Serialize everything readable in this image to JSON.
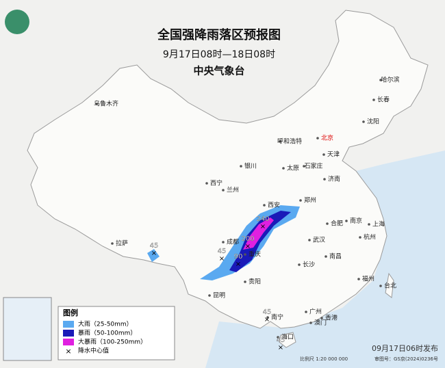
{
  "header": {
    "title": "全国强降雨落区预报图",
    "subtitle": "9月17日08时—18日08时",
    "issuer": "中央气象台"
  },
  "cities": [
    "乌鲁木齐",
    "哈尔滨",
    "长春",
    "沈阳",
    "北京",
    "天津",
    "呼和浩特",
    "石家庄",
    "太原",
    "银川",
    "济南",
    "西宁",
    "兰州",
    "郑州",
    "西安",
    "合肥",
    "南京",
    "上海",
    "武汉",
    "杭州",
    "成都",
    "重庆",
    "拉萨",
    "长沙",
    "南昌",
    "贵阳",
    "福州",
    "台北",
    "昆明",
    "南宁",
    "广州",
    "香港",
    "澳门",
    "海口"
  ],
  "rain_centers": [
    45,
    45,
    240,
    200,
    90,
    45,
    45
  ],
  "legend": {
    "title": "图例",
    "items": [
      {
        "label": "大雨（25-50mm）",
        "color": "#5aa9f0"
      },
      {
        "label": "暴雨（50-100mm）",
        "color": "#1a1ab8"
      },
      {
        "label": "大暴雨（100-250mm）",
        "color": "#e020e0"
      }
    ],
    "center_label": "降水中心值"
  },
  "footer": {
    "issued": "09月17日06时发布",
    "scale": "比例尺 1:20 000 000",
    "approval": "审图号：GS京(2024)0236号"
  }
}
